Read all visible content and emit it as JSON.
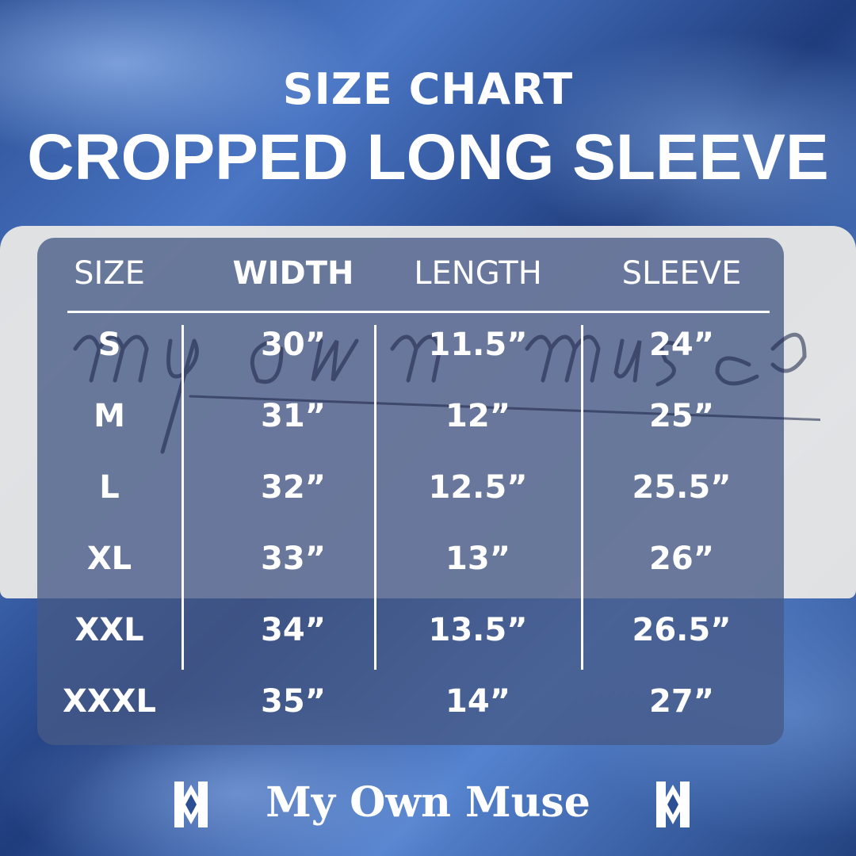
{
  "title": "SIZE CHART",
  "subtitle": "CROPPED LONG SLEEVE",
  "watermark": "my own muse",
  "headers": [
    "SIZE",
    "WIDTH",
    "LENGTH",
    "SLEEVE"
  ],
  "rows": [
    [
      "S",
      "30”",
      "11.5”",
      "24”"
    ],
    [
      "M",
      "31”",
      "12”",
      "25”"
    ],
    [
      "L",
      "32”",
      "12.5”",
      "25.5”"
    ],
    [
      "XL",
      "33”",
      "13”",
      "26”"
    ],
    [
      "XXL",
      "34”",
      "13.5”",
      "26.5”"
    ],
    [
      "XXXL",
      "35”",
      "14”",
      "27”"
    ]
  ],
  "brand": "My Own Muse",
  "logo_icon": "mom-monogram-icon",
  "colors": {
    "background": "#3a62ad",
    "panel": "#465a87",
    "text": "#ffffff"
  }
}
